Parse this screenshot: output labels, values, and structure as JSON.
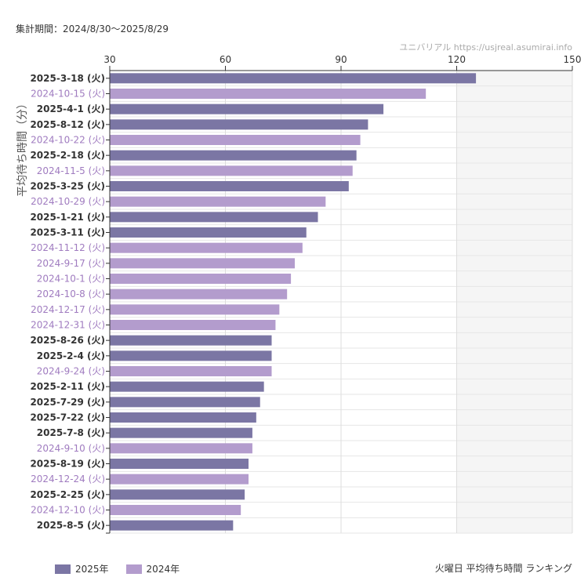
{
  "header": {
    "period": "集計期間：2024/8/30〜2025/8/29",
    "source": "ユニバリアル  https://usjreal.asumirai.info"
  },
  "footer": {
    "title": "火曜日 平均待ち時間 ランキング"
  },
  "colors": {
    "2025": "#7b76a4",
    "2024": "#b39ccd",
    "label_2025": "#333333",
    "label_2024": "#a07cc0",
    "plot_bg": "#f5f5f5"
  },
  "legend": [
    {
      "label": "2025年",
      "color_key": "2025"
    },
    {
      "label": "2024年",
      "color_key": "2024"
    }
  ],
  "chart_data": {
    "type": "bar",
    "orientation": "horizontal",
    "ylabel": "平均待ち時間（分）",
    "xlim": [
      30,
      150
    ],
    "xticks": [
      30,
      60,
      90,
      120,
      150
    ],
    "grid": true,
    "legend_position": "bottom-left",
    "categories": [
      "2025-3-18 (火)",
      "2024-10-15 (火)",
      "2025-4-1 (火)",
      "2025-8-12 (火)",
      "2024-10-22 (火)",
      "2025-2-18 (火)",
      "2024-11-5 (火)",
      "2025-3-25 (火)",
      "2024-10-29 (火)",
      "2025-1-21 (火)",
      "2025-3-11 (火)",
      "2024-11-12 (火)",
      "2024-9-17 (火)",
      "2024-10-1 (火)",
      "2024-10-8 (火)",
      "2024-12-17 (火)",
      "2024-12-31 (火)",
      "2025-8-26 (火)",
      "2025-2-4 (火)",
      "2024-9-24 (火)",
      "2025-2-11 (火)",
      "2025-7-29 (火)",
      "2025-7-22 (火)",
      "2025-7-8 (火)",
      "2024-9-10 (火)",
      "2025-8-19 (火)",
      "2024-12-24 (火)",
      "2025-2-25 (火)",
      "2024-12-10 (火)",
      "2025-8-5 (火)"
    ],
    "years": [
      "2025",
      "2024",
      "2025",
      "2025",
      "2024",
      "2025",
      "2024",
      "2025",
      "2024",
      "2025",
      "2025",
      "2024",
      "2024",
      "2024",
      "2024",
      "2024",
      "2024",
      "2025",
      "2025",
      "2024",
      "2025",
      "2025",
      "2025",
      "2025",
      "2024",
      "2025",
      "2024",
      "2025",
      "2024",
      "2025"
    ],
    "values": [
      125,
      112,
      101,
      97,
      95,
      94,
      93,
      92,
      86,
      84,
      81,
      80,
      78,
      77,
      76,
      74,
      73,
      72,
      72,
      72,
      70,
      69,
      68,
      67,
      67,
      66,
      66,
      65,
      64,
      62
    ]
  }
}
